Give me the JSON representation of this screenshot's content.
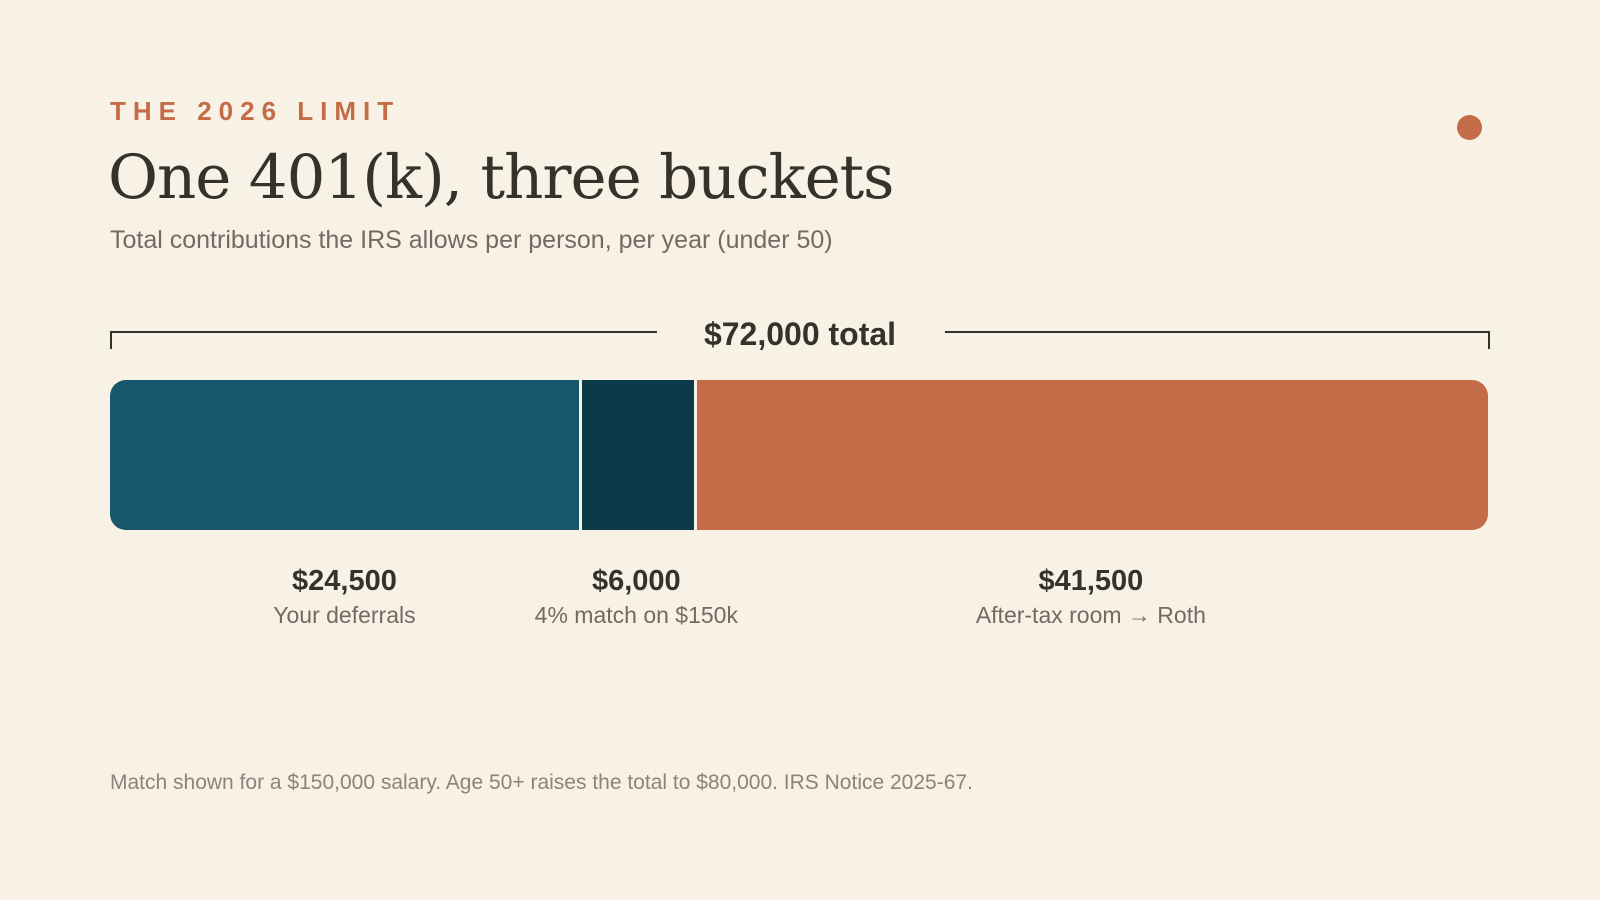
{
  "header": {
    "eyebrow": "THE 2026 LIMIT",
    "title": "One 401(k), three buckets",
    "subtitle": "Total contributions the IRS allows per person, per year (under 50)"
  },
  "chart_data": {
    "type": "bar",
    "orientation": "horizontal-stacked",
    "total_label": "$72,000 total",
    "total": 72000,
    "segments": [
      {
        "value": 24500,
        "value_label": "$24,500",
        "label": "Your deferrals",
        "color": "#17566b"
      },
      {
        "value": 6000,
        "value_label": "$6,000",
        "label": "4% match on $150k",
        "color": "#0c3a48"
      },
      {
        "value": 41500,
        "value_label": "$41,500",
        "label": "After-tax room → Roth",
        "color": "#c46b47"
      }
    ],
    "grid": false,
    "legend": "none"
  },
  "footnote": "Match shown for a $150,000 salary. Age 50+ raises the total to $80,000. IRS Notice 2025-67.",
  "colors": {
    "accent": "#c46b47",
    "background": "#f8f1e6",
    "text": "#35322c",
    "muted": "#716b62"
  }
}
